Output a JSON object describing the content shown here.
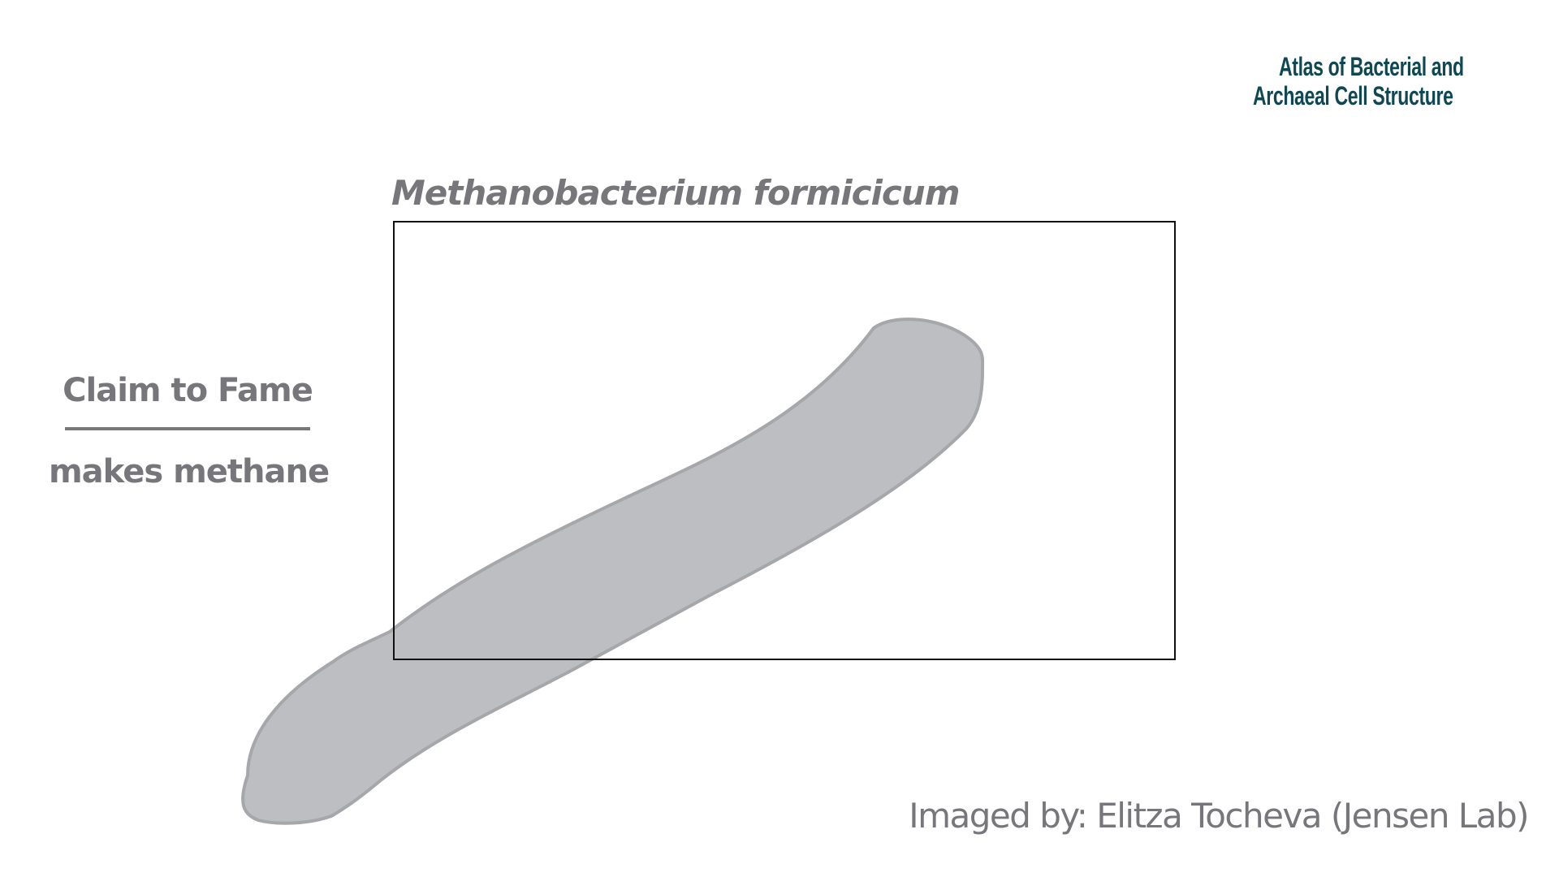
{
  "logo": {
    "line1": "Atlas of Bacterial and",
    "line2": "Archaeal Cell Structure"
  },
  "title": "Methanobacterium formicicum",
  "claim": {
    "heading": "Claim to Fame",
    "text": "makes methane"
  },
  "credit": "Imaged by: Elitza Tocheva (Jensen Lab)",
  "colors": {
    "text_gray": "#77777b",
    "cell_fill": "#bdbec2",
    "cell_stroke": "#a6a7ab",
    "logo": "#0f4852"
  }
}
